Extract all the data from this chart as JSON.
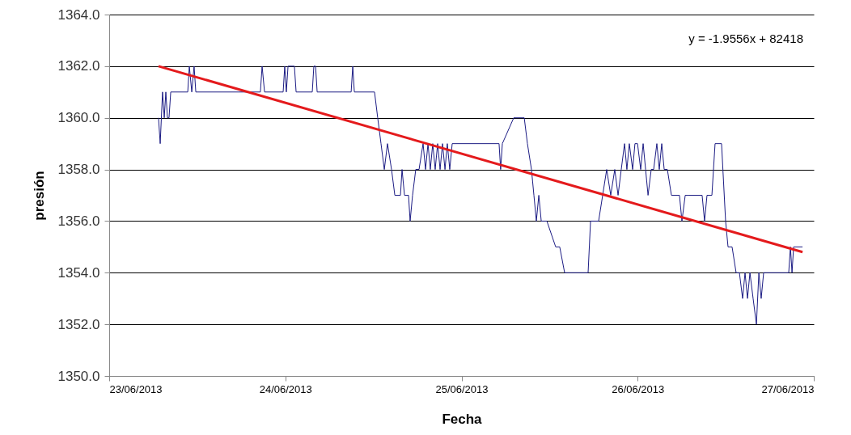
{
  "chart_data": {
    "type": "line",
    "xlabel": "Fecha",
    "ylabel": "presión",
    "annotations": [
      "y = -1.9556x + 82418"
    ],
    "xlim": [
      "2013-06-23",
      "2013-06-27"
    ],
    "xticks": [
      {
        "value": "2013-06-23",
        "label": "23/06/2013"
      },
      {
        "value": "2013-06-24",
        "label": "24/06/2013"
      },
      {
        "value": "2013-06-25",
        "label": "25/06/2013"
      },
      {
        "value": "2013-06-26",
        "label": "26/06/2013"
      },
      {
        "value": "2013-06-27",
        "label": "27/06/2013"
      }
    ],
    "ylim": [
      1350,
      1364
    ],
    "yticks": [
      {
        "value": 1350,
        "label": "1350.0"
      },
      {
        "value": 1352,
        "label": "1352.0"
      },
      {
        "value": 1354,
        "label": "1354.0"
      },
      {
        "value": 1356,
        "label": "1356.0"
      },
      {
        "value": 1358,
        "label": "1358.0"
      },
      {
        "value": 1360,
        "label": "1360.0"
      },
      {
        "value": 1362,
        "label": "1362.0"
      },
      {
        "value": 1364,
        "label": "1364.0"
      }
    ],
    "grid": "y",
    "marker": "none",
    "line_style": "solid",
    "series": [
      {
        "color": "#1c1c84",
        "x": [
          "2013-06-23T06:43",
          "2013-06-23T06:57",
          "2013-06-23T07:16",
          "2013-06-23T07:30",
          "2013-06-23T07:43",
          "2013-06-23T07:56",
          "2013-06-23T08:09",
          "2013-06-23T08:23",
          "2013-06-23T10:42",
          "2013-06-23T10:55",
          "2013-06-23T11:15",
          "2013-06-23T11:34",
          "2013-06-23T11:48",
          "2013-06-23T20:36",
          "2013-06-23T20:50",
          "2013-06-23T21:10",
          "2013-06-23T23:42",
          "2013-06-23T23:55",
          "2013-06-24T00:08",
          "2013-06-24T00:22",
          "2013-06-24T01:14",
          "2013-06-24T01:28",
          "2013-06-24T03:40",
          "2013-06-24T03:53",
          "2013-06-24T04:07",
          "2013-06-24T04:20",
          "2013-06-24T08:58",
          "2013-06-24T09:11",
          "2013-06-24T09:24",
          "2013-06-24T12:09",
          "2013-06-24T12:35",
          "2013-06-24T13:02",
          "2013-06-24T13:29",
          "2013-06-24T13:55",
          "2013-06-24T14:28",
          "2013-06-24T14:55",
          "2013-06-24T15:41",
          "2013-06-24T15:54",
          "2013-06-24T16:14",
          "2013-06-24T16:47",
          "2013-06-24T17:00",
          "2013-06-24T17:20",
          "2013-06-24T17:46",
          "2013-06-24T18:13",
          "2013-06-24T18:46",
          "2013-06-24T19:06",
          "2013-06-24T19:26",
          "2013-06-24T19:45",
          "2013-06-24T20:05",
          "2013-06-24T20:25",
          "2013-06-24T20:45",
          "2013-06-24T21:05",
          "2013-06-24T21:25",
          "2013-06-24T21:45",
          "2013-06-24T22:04",
          "2013-06-24T22:24",
          "2013-06-24T22:44",
          "2013-06-24T23:04",
          "2013-06-25T05:07",
          "2013-06-25T05:20",
          "2013-06-25T05:34",
          "2013-06-25T07:07",
          "2013-06-25T08:33",
          "2013-06-25T08:59",
          "2013-06-25T09:32",
          "2013-06-25T09:52",
          "2013-06-25T10:12",
          "2013-06-25T10:32",
          "2013-06-25T10:52",
          "2013-06-25T11:11",
          "2013-06-25T11:38",
          "2013-06-25T12:50",
          "2013-06-25T13:23",
          "2013-06-25T14:03",
          "2013-06-25T17:15",
          "2013-06-25T17:35",
          "2013-06-25T18:41",
          "2013-06-25T19:14",
          "2013-06-25T19:47",
          "2013-06-25T20:20",
          "2013-06-25T20:53",
          "2013-06-25T21:20",
          "2013-06-25T21:46",
          "2013-06-25T22:13",
          "2013-06-25T22:32",
          "2013-06-25T22:52",
          "2013-06-25T23:19",
          "2013-06-25T23:38",
          "2013-06-25T23:59",
          "2013-06-26T00:25",
          "2013-06-26T00:45",
          "2013-06-26T01:05",
          "2013-06-26T01:25",
          "2013-06-26T01:51",
          "2013-06-26T02:11",
          "2013-06-26T02:37",
          "2013-06-26T02:57",
          "2013-06-26T03:17",
          "2013-06-26T03:37",
          "2013-06-26T04:03",
          "2013-06-26T04:36",
          "2013-06-26T05:42",
          "2013-06-26T06:02",
          "2013-06-26T06:29",
          "2013-06-26T06:49",
          "2013-06-26T08:47",
          "2013-06-26T09:07",
          "2013-06-26T09:27",
          "2013-06-26T10:07",
          "2013-06-26T10:33",
          "2013-06-26T11:26",
          "2013-06-26T11:59",
          "2013-06-26T12:19",
          "2013-06-26T12:52",
          "2013-06-26T13:25",
          "2013-06-26T13:52",
          "2013-06-26T14:18",
          "2013-06-26T14:38",
          "2013-06-26T14:58",
          "2013-06-26T15:18",
          "2013-06-26T15:44",
          "2013-06-26T16:11",
          "2013-06-26T16:31",
          "2013-06-26T16:50",
          "2013-06-26T17:10",
          "2013-06-26T17:30",
          "2013-06-26T20:35",
          "2013-06-26T20:49",
          "2013-06-26T21:02",
          "2013-06-26T21:15",
          "2013-06-26T21:28",
          "2013-06-26T22:28"
        ],
        "values": [
          1360,
          1359,
          1361,
          1360,
          1361,
          1360,
          1360,
          1361,
          1361,
          1362,
          1361,
          1362,
          1361,
          1361,
          1362,
          1361,
          1361,
          1362,
          1361,
          1362,
          1362,
          1361,
          1361,
          1362,
          1362,
          1361,
          1361,
          1362,
          1361,
          1361,
          1360,
          1359,
          1358,
          1359,
          1358,
          1357,
          1357,
          1358,
          1357,
          1357,
          1356,
          1357,
          1358,
          1358,
          1359,
          1358,
          1359,
          1358,
          1359,
          1358,
          1359,
          1358,
          1359,
          1358,
          1359,
          1358,
          1359,
          1359,
          1359,
          1358,
          1359,
          1360,
          1360,
          1359,
          1358,
          1357,
          1356,
          1357,
          1356,
          1356,
          1356,
          1355,
          1355,
          1354,
          1354,
          1356,
          1356,
          1357,
          1358,
          1357,
          1358,
          1357,
          1358,
          1359,
          1358,
          1359,
          1358,
          1359,
          1359,
          1358,
          1359,
          1358,
          1357,
          1358,
          1358,
          1359,
          1358,
          1359,
          1358,
          1358,
          1357,
          1357,
          1356,
          1357,
          1357,
          1357,
          1356,
          1357,
          1357,
          1359,
          1359,
          1356,
          1355,
          1355,
          1354,
          1354,
          1353,
          1354,
          1353,
          1354,
          1353,
          1352,
          1354,
          1353,
          1354,
          1354,
          1354,
          1355,
          1354,
          1355,
          1355,
          1355
        ]
      },
      {
        "type": "line",
        "color": "#e41a1c",
        "x": [
          "2013-06-23T06:43",
          "2013-06-26T22:28"
        ],
        "values": [
          1362.0,
          1354.8
        ]
      }
    ]
  }
}
